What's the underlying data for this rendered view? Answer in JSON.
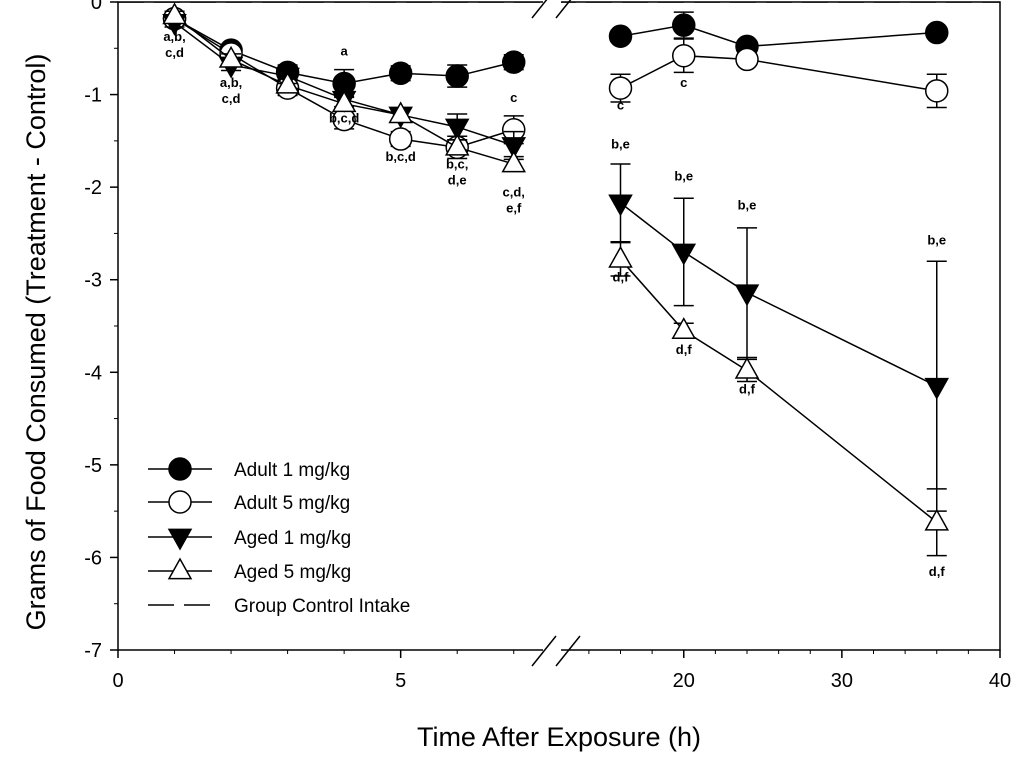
{
  "chart_data": {
    "type": "line",
    "title": "",
    "xlabel": "Time After Exposure (h)",
    "ylabel": "Grams of Food Consumed (Treatment - Control)",
    "ylim": [
      -7,
      0
    ],
    "y_ticks": [
      "0",
      "-1",
      "-2",
      "-3",
      "-4",
      "-5",
      "-6",
      "-7"
    ],
    "x_axis_broken": true,
    "x_segments": [
      {
        "range": [
          0,
          7.5
        ],
        "ticks": [
          "0",
          "5"
        ]
      },
      {
        "range": [
          12.3,
          40
        ],
        "ticks": [
          "20",
          "30",
          "40"
        ]
      }
    ],
    "reference_line": {
      "name": "Group Control Intake",
      "y": 0,
      "style": "dashed"
    },
    "series": [
      {
        "name": "Adult 1 mg/kg",
        "marker": "filled-circle",
        "x": [
          1,
          2,
          3,
          4,
          5,
          6,
          7,
          16,
          20,
          24,
          36
        ],
        "y": [
          -0.18,
          -0.52,
          -0.76,
          -0.88,
          -0.77,
          -0.8,
          -0.65,
          -0.37,
          -0.25,
          -0.48,
          -0.33
        ],
        "err": [
          0.05,
          0.06,
          0.08,
          0.15,
          0.08,
          0.12,
          0.08,
          0.05,
          0.14,
          0.05,
          0.05
        ]
      },
      {
        "name": "Adult 5 mg/kg",
        "marker": "open-circle",
        "x": [
          1,
          2,
          3,
          4,
          5,
          6,
          7,
          16,
          20,
          24,
          36
        ],
        "y": [
          -0.18,
          -0.56,
          -0.93,
          -1.27,
          -1.48,
          -1.57,
          -1.38,
          -0.93,
          -0.58,
          -0.62,
          -0.96
        ],
        "err": [
          0.05,
          0.06,
          0.08,
          0.1,
          0.08,
          0.12,
          0.15,
          0.15,
          0.18,
          0.06,
          0.18
        ]
      },
      {
        "name": "Aged 1 mg/kg",
        "marker": "filled-triangle-down",
        "x": [
          1,
          2,
          3,
          4,
          5,
          6,
          7,
          16,
          20,
          24,
          36
        ],
        "y": [
          -0.22,
          -0.68,
          -0.8,
          -1.05,
          -1.22,
          -1.35,
          -1.55,
          -2.17,
          -2.7,
          -3.14,
          -4.15
        ],
        "err": [
          0.05,
          0.06,
          0.08,
          0.08,
          0.06,
          0.14,
          0.15,
          0.42,
          0.58,
          0.7,
          1.35
        ]
      },
      {
        "name": "Aged 5 mg/kg",
        "marker": "open-triangle-up",
        "x": [
          1,
          2,
          3,
          4,
          5,
          6,
          7,
          16,
          20,
          24,
          36
        ],
        "y": [
          -0.15,
          -0.62,
          -0.9,
          -1.1,
          -1.22,
          -1.57,
          -1.75,
          -2.78,
          -3.55,
          -3.98,
          -5.62
        ],
        "err": [
          0.05,
          0.06,
          0.07,
          0.08,
          0.07,
          0.08,
          0.08,
          0.18,
          0.08,
          0.12,
          0.36
        ]
      }
    ],
    "annotations": [
      {
        "lines": [
          "a,b,",
          "c,d"
        ],
        "x": 1,
        "y": -0.42
      },
      {
        "lines": [
          "a,b,",
          "c,d"
        ],
        "x": 2,
        "y": -0.92
      },
      {
        "lines": [
          "a"
        ],
        "x": 4,
        "y": -0.58
      },
      {
        "lines": [
          "b,c,d"
        ],
        "x": 4,
        "y": -1.3
      },
      {
        "lines": [
          "b,c,d"
        ],
        "x": 5,
        "y": -1.72
      },
      {
        "lines": [
          "b,c,",
          "d,e"
        ],
        "x": 6,
        "y": -1.8
      },
      {
        "lines": [
          "c,d,",
          "e,f"
        ],
        "x": 7,
        "y": -2.1
      },
      {
        "lines": [
          "c"
        ],
        "x": 7,
        "y": -1.08
      },
      {
        "lines": [
          "c"
        ],
        "x": 16,
        "y": -1.16
      },
      {
        "lines": [
          "b,e"
        ],
        "x": 16,
        "y": -1.58
      },
      {
        "lines": [
          "d,f"
        ],
        "x": 16,
        "y": -3.02
      },
      {
        "lines": [
          "c"
        ],
        "x": 20,
        "y": -0.92
      },
      {
        "lines": [
          "b,e"
        ],
        "x": 20,
        "y": -1.93
      },
      {
        "lines": [
          "d,f"
        ],
        "x": 20,
        "y": -3.8
      },
      {
        "lines": [
          "b,e"
        ],
        "x": 24,
        "y": -2.24
      },
      {
        "lines": [
          "d,f"
        ],
        "x": 24,
        "y": -4.23
      },
      {
        "lines": [
          "b,e"
        ],
        "x": 36,
        "y": -2.62
      },
      {
        "lines": [
          "d,f"
        ],
        "x": 36,
        "y": -6.2
      }
    ]
  }
}
